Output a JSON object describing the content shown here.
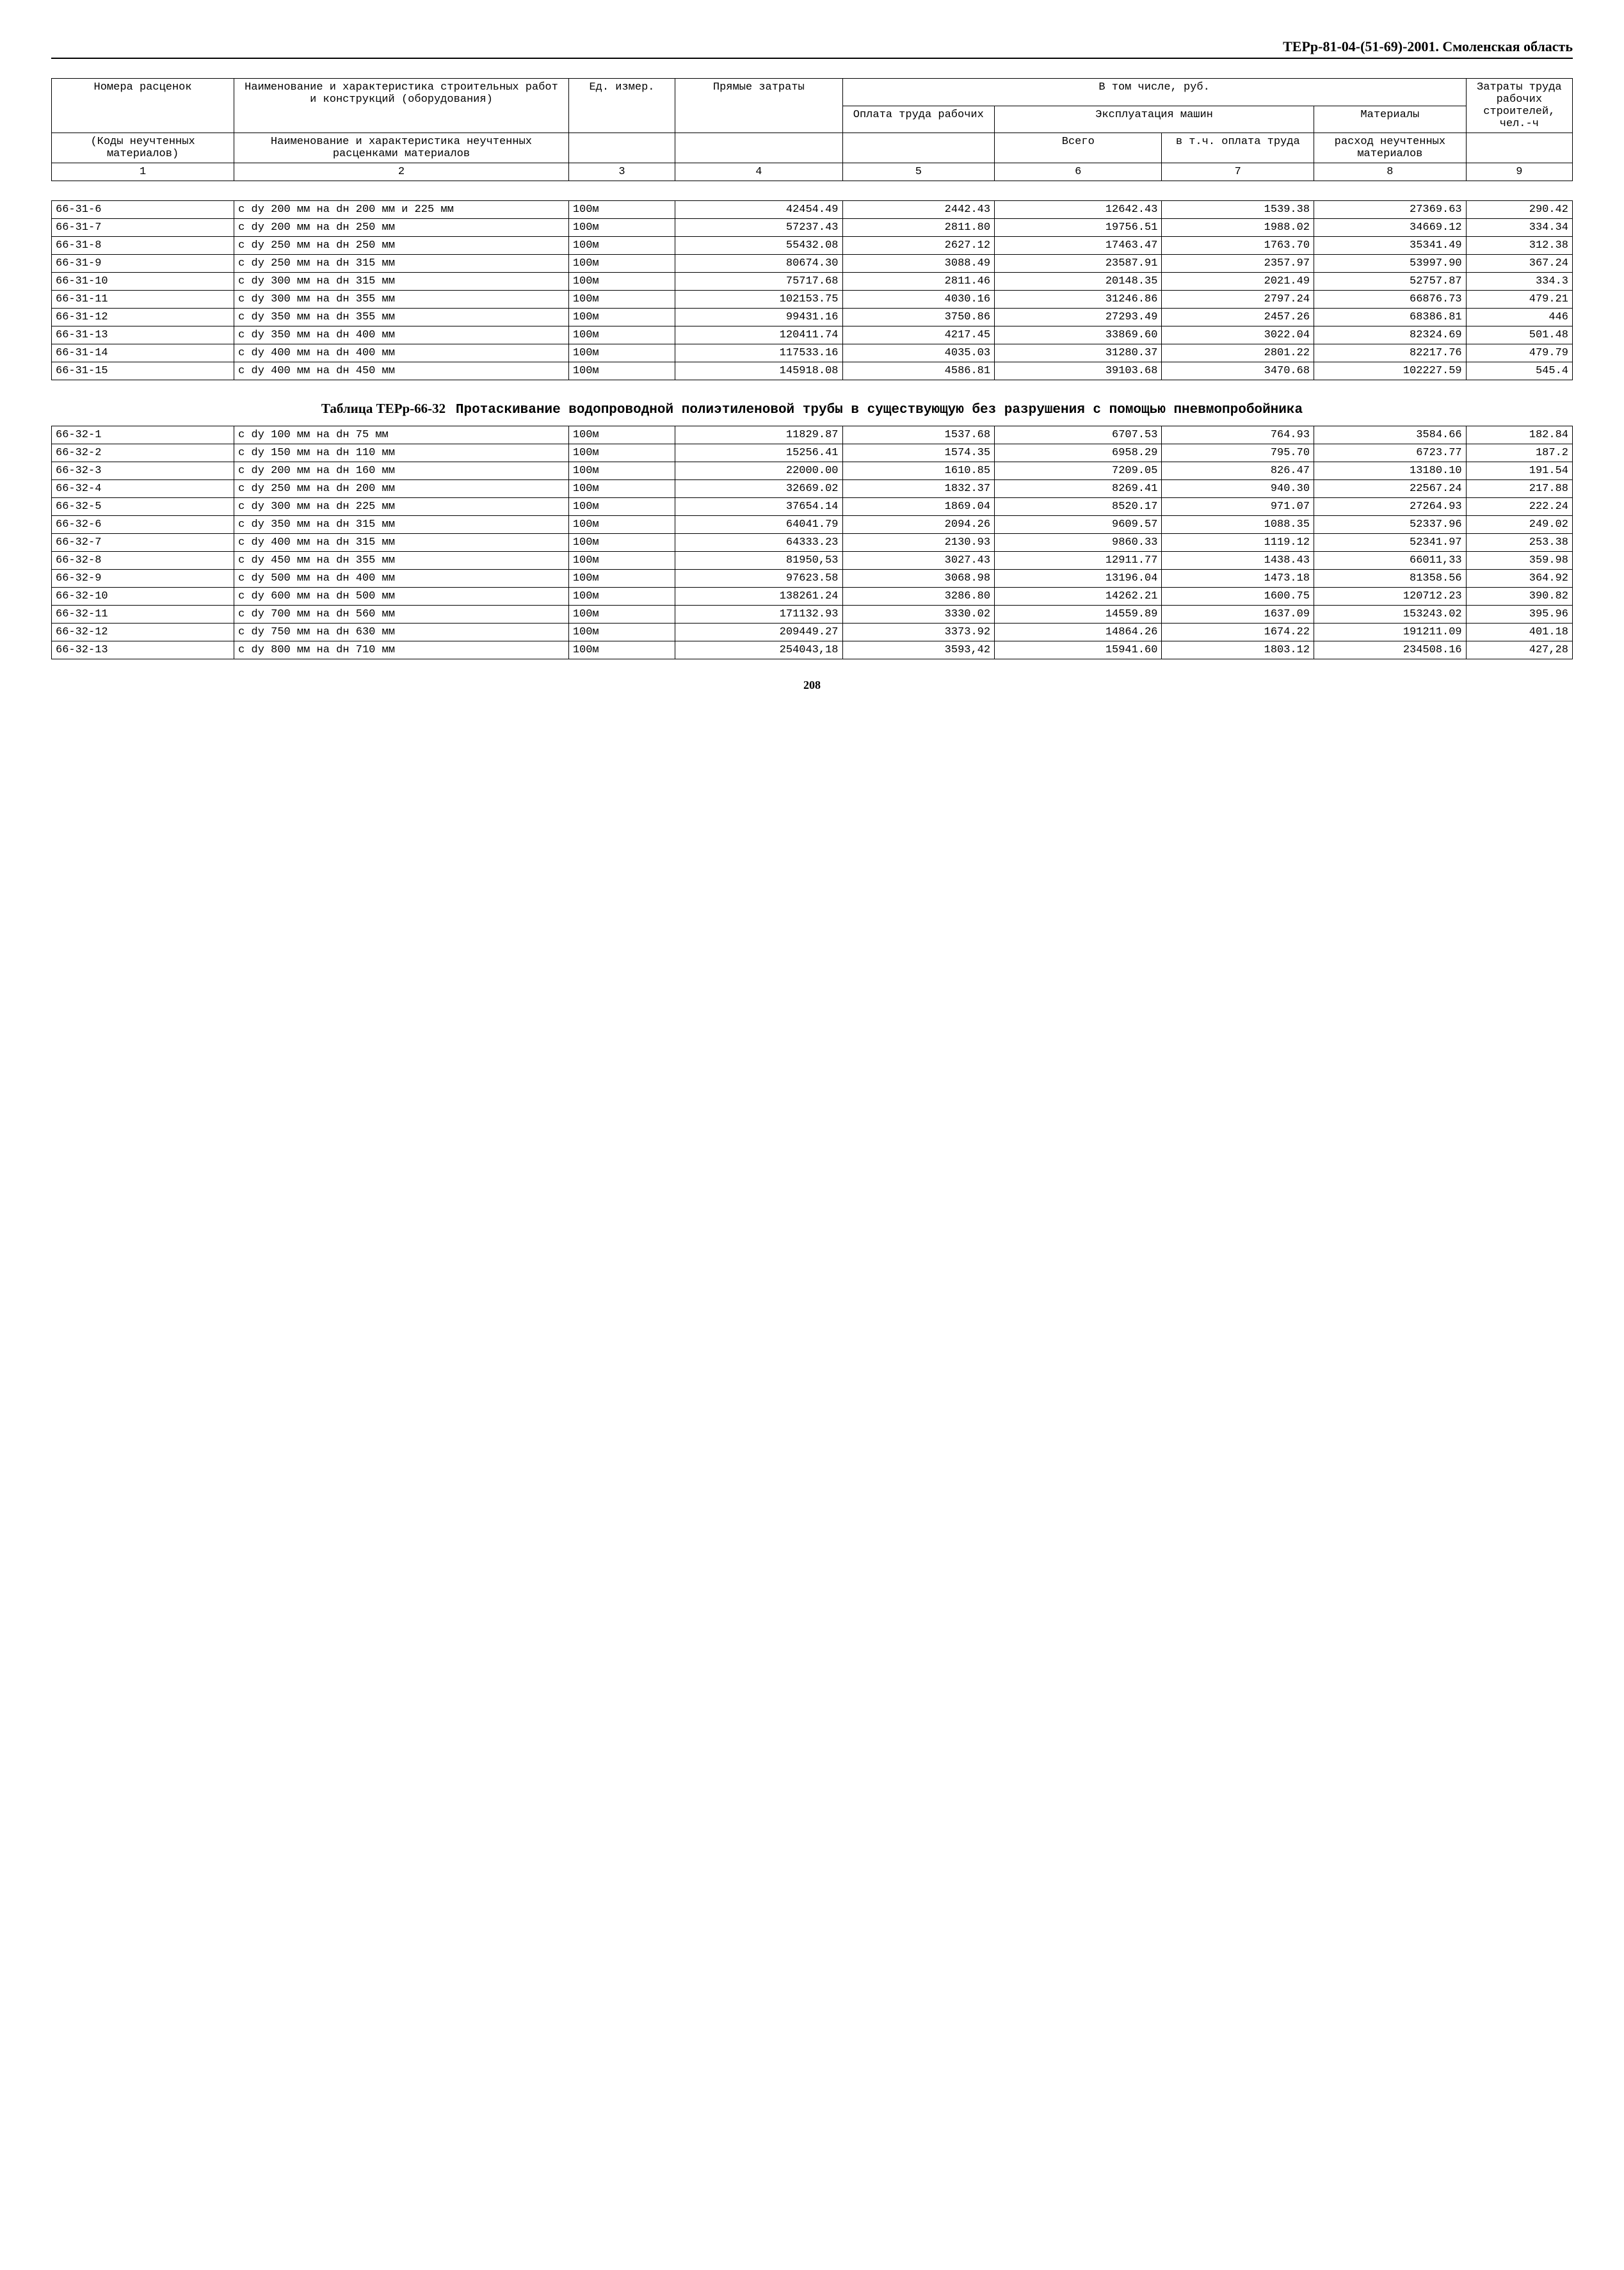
{
  "header": "ТЕРр-81-04-(51-69)-2001. Смоленская область",
  "head_table": {
    "r1c1": "Номера расценок",
    "r1c2": "Наименование и характеристика строительных работ и конструкций (оборудования)",
    "r1c3": "Ед. измер.",
    "r1c4": "Прямые затраты",
    "r1c5": "В том числе, руб.",
    "r1c6": "Затраты труда рабочих строителей, чел.-ч",
    "r2c1": "Оплата труда рабочих",
    "r2c2": "Эксплуатация машин",
    "r2c3": "Материалы",
    "r3c1": "(Коды неучтенных материалов)",
    "r3c2": "Наименование и характеристика неучтенных расценками материалов",
    "r3c3": "Всего",
    "r3c4": "в т.ч. оплата труда",
    "r3c5": "расход неучтенных материалов",
    "n1": "1",
    "n2": "2",
    "n3": "3",
    "n4": "4",
    "n5": "5",
    "n6": "6",
    "n7": "7",
    "n8": "8",
    "n9": "9"
  },
  "table1": {
    "rows": [
      [
        "66-31-6",
        "с dу 200 мм на dн 200 мм и 225 мм",
        "100м",
        "42454.49",
        "2442.43",
        "12642.43",
        "1539.38",
        "27369.63",
        "290.42"
      ],
      [
        "66-31-7",
        "с dу 200 мм на dн 250 мм",
        "100м",
        "57237.43",
        "2811.80",
        "19756.51",
        "1988.02",
        "34669.12",
        "334.34"
      ],
      [
        "66-31-8",
        "с dу 250 мм на dн 250 мм",
        "100м",
        "55432.08",
        "2627.12",
        "17463.47",
        "1763.70",
        "35341.49",
        "312.38"
      ],
      [
        "66-31-9",
        "с dу 250 мм на dн 315 мм",
        "100м",
        "80674.30",
        "3088.49",
        "23587.91",
        "2357.97",
        "53997.90",
        "367.24"
      ],
      [
        "66-31-10",
        "с dу 300 мм на dн 315 мм",
        "100м",
        "75717.68",
        "2811.46",
        "20148.35",
        "2021.49",
        "52757.87",
        "334.3"
      ],
      [
        "66-31-11",
        "с dу 300 мм на dн 355 мм",
        "100м",
        "102153.75",
        "4030.16",
        "31246.86",
        "2797.24",
        "66876.73",
        "479.21"
      ],
      [
        "66-31-12",
        "с dу 350 мм на dн 355 мм",
        "100м",
        "99431.16",
        "3750.86",
        "27293.49",
        "2457.26",
        "68386.81",
        "446"
      ],
      [
        "66-31-13",
        "с dу 350 мм на dн 400 мм",
        "100м",
        "120411.74",
        "4217.45",
        "33869.60",
        "3022.04",
        "82324.69",
        "501.48"
      ],
      [
        "66-31-14",
        "с dу 400 мм на dн 400 мм",
        "100м",
        "117533.16",
        "4035.03",
        "31280.37",
        "2801.22",
        "82217.76",
        "479.79"
      ],
      [
        "66-31-15",
        "с dу 400 мм на dн 450 мм",
        "100м",
        "145918.08",
        "4586.81",
        "39103.68",
        "3470.68",
        "102227.59",
        "545.4"
      ]
    ]
  },
  "section2": {
    "label": "Таблица ТЕРр-66-32",
    "desc": "Протаскивание водопроводной полиэтиленовой трубы в существующую без разрушения с помощью пневмопробойника"
  },
  "table2": {
    "rows": [
      [
        "66-32-1",
        "с dу 100 мм на dн 75 мм",
        "100м",
        "11829.87",
        "1537.68",
        "6707.53",
        "764.93",
        "3584.66",
        "182.84"
      ],
      [
        "66-32-2",
        "с dу 150 мм на dн 110 мм",
        "100м",
        "15256.41",
        "1574.35",
        "6958.29",
        "795.70",
        "6723.77",
        "187.2"
      ],
      [
        "66-32-3",
        "с dу 200 мм на dн 160 мм",
        "100м",
        "22000.00",
        "1610.85",
        "7209.05",
        "826.47",
        "13180.10",
        "191.54"
      ],
      [
        "66-32-4",
        "с dу 250 мм на dн 200 мм",
        "100м",
        "32669.02",
        "1832.37",
        "8269.41",
        "940.30",
        "22567.24",
        "217.88"
      ],
      [
        "66-32-5",
        "с dу 300 мм на dн 225 мм",
        "100м",
        "37654.14",
        "1869.04",
        "8520.17",
        "971.07",
        "27264.93",
        "222.24"
      ],
      [
        "66-32-6",
        "с dу 350 мм на dн 315 мм",
        "100м",
        "64041.79",
        "2094.26",
        "9609.57",
        "1088.35",
        "52337.96",
        "249.02"
      ],
      [
        "66-32-7",
        "с dу 400 мм на dн 315 мм",
        "100м",
        "64333.23",
        "2130.93",
        "9860.33",
        "1119.12",
        "52341.97",
        "253.38"
      ],
      [
        "66-32-8",
        "с dу 450 мм на dн 355 мм",
        "100м",
        "81950,53",
        "3027.43",
        "12911.77",
        "1438.43",
        "66011,33",
        "359.98"
      ],
      [
        "66-32-9",
        "с dу 500 мм на dн 400 мм",
        "100м",
        "97623.58",
        "3068.98",
        "13196.04",
        "1473.18",
        "81358.56",
        "364.92"
      ],
      [
        "66-32-10",
        "с dу 600 мм на dн 500 мм",
        "100м",
        "138261.24",
        "3286.80",
        "14262.21",
        "1600.75",
        "120712.23",
        "390.82"
      ],
      [
        "66-32-11",
        "с dу 700 мм на dн 560 мм",
        "100м",
        "171132.93",
        "3330.02",
        "14559.89",
        "1637.09",
        "153243.02",
        "395.96"
      ],
      [
        "66-32-12",
        "с dу 750 мм на dн 630 мм",
        "100м",
        "209449.27",
        "3373.92",
        "14864.26",
        "1674.22",
        "191211.09",
        "401.18"
      ],
      [
        "66-32-13",
        "с dу 800 мм на dн 710 мм",
        "100м",
        "254043,18",
        "3593,42",
        "15941.60",
        "1803.12",
        "234508.16",
        "427,28"
      ]
    ]
  },
  "page_num": "208",
  "col_widths": [
    "12%",
    "22%",
    "7%",
    "11%",
    "10%",
    "11%",
    "10%",
    "10%",
    "7%"
  ]
}
